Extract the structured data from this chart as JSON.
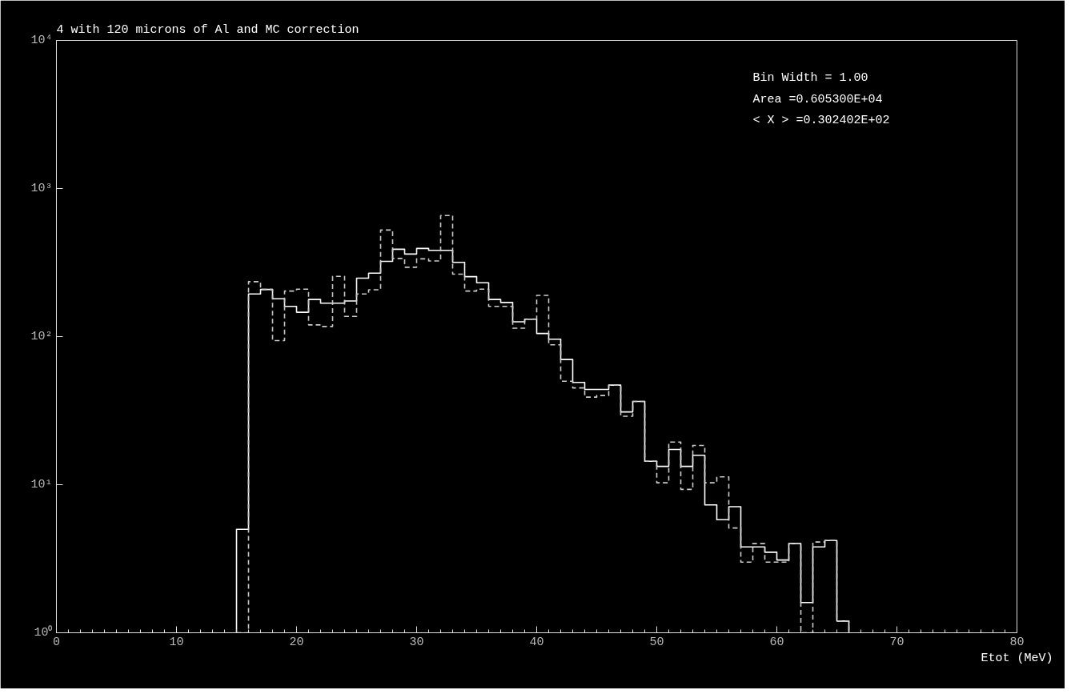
{
  "chart_data": {
    "type": "histogram",
    "title": "4 with 120 microns of Al and MC correction",
    "xlabel": "Etot (MeV)",
    "bins": [
      15,
      16,
      17,
      18,
      19,
      20,
      21,
      22,
      23,
      24,
      25,
      26,
      27,
      28,
      29,
      30,
      31,
      32,
      33,
      34,
      35,
      36,
      37,
      38,
      39,
      40,
      41,
      42,
      43,
      44,
      45,
      46,
      47,
      48,
      49,
      50,
      51,
      52,
      53,
      54,
      55,
      56,
      57,
      58,
      59,
      60,
      61,
      62,
      63,
      64,
      65,
      66
    ],
    "series": [
      {
        "color": "#ffffff",
        "line_style": "solid",
        "values": [
          5.0,
          194,
          208,
          180,
          160,
          146,
          178,
          168,
          168,
          174,
          248,
          268,
          322,
          389,
          361,
          394,
          382,
          382,
          317,
          254,
          231,
          178,
          170,
          126,
          131,
          105,
          96,
          70,
          49,
          44,
          44,
          47,
          31,
          36.5,
          14.4,
          13.3,
          17.3,
          13.3,
          15.8,
          7.3,
          5.8,
          7.1,
          3.8,
          3.8,
          3.5,
          3.1,
          4.0,
          1.6,
          3.8,
          4.2,
          1.2
        ]
      },
      {
        "color": "#cccccc",
        "line_style": "dashed",
        "values": [
          null,
          235,
          208,
          94,
          203,
          209,
          120,
          117,
          255,
          137,
          194,
          207,
          524,
          337,
          294,
          335,
          324,
          657,
          264,
          203,
          209,
          160,
          160,
          114,
          131,
          190,
          88,
          50,
          45,
          39,
          40,
          47,
          29,
          36.5,
          14.4,
          10.3,
          19.4,
          9.3,
          18.4,
          10.3,
          11.3,
          5.1,
          3.0,
          4.0,
          3.0,
          3.0,
          4.0,
          null,
          4.1,
          4.2,
          1.2
        ]
      }
    ],
    "xlim": [
      0,
      80
    ],
    "xticks": [
      0,
      10,
      20,
      30,
      40,
      50,
      60,
      70,
      80
    ],
    "ylim": [
      1,
      10000
    ],
    "log": "y",
    "yticks": [
      {
        "value": 1,
        "label": "10⁰"
      },
      {
        "value": 10,
        "label": "10¹"
      },
      {
        "value": 100,
        "label": "10²"
      },
      {
        "value": 1000,
        "label": "10³"
      },
      {
        "value": 10000,
        "label": "10⁴"
      }
    ],
    "grid": false,
    "annotations": [
      "Bin Width =    1.00",
      "Area  =0.605300E+04",
      "< X > =0.302402E+02"
    ]
  }
}
